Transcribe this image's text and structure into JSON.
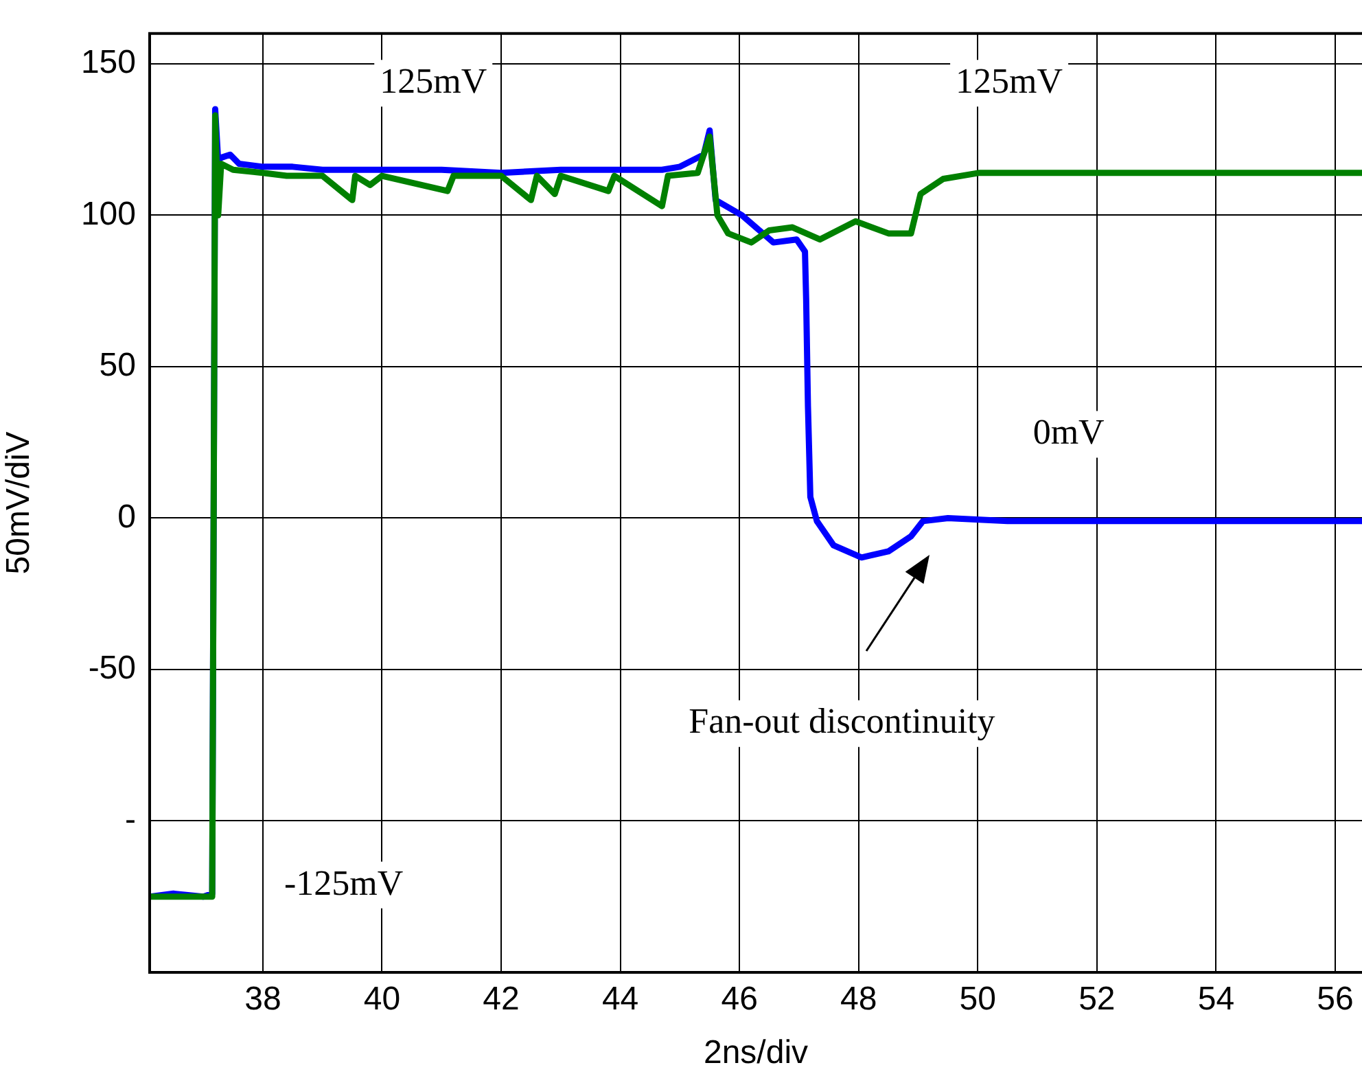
{
  "chart_data": {
    "type": "line",
    "xlabel": "2ns/div",
    "ylabel": "50mV/diV",
    "xlim": [
      36.1,
      56.45
    ],
    "xticks": [
      38,
      40,
      42,
      44,
      46,
      48,
      50,
      52,
      54,
      56
    ],
    "ylim": [
      -150,
      160
    ],
    "yticks": [
      150,
      100,
      50,
      0,
      -50,
      {
        "value": -100,
        "label": "-"
      }
    ],
    "grid": true,
    "legend": false,
    "marker": "none",
    "line_style": "solid",
    "annotations": [
      "125mV",
      "125mV",
      "0mV",
      "-125mV",
      "Fan-out discontinuity"
    ],
    "series": [
      {
        "color": "#0000ff",
        "x": [
          36.1,
          36.5,
          37.0,
          37.15,
          37.2,
          37.25,
          37.3,
          37.45,
          37.6,
          38.0,
          38.5,
          39.0,
          39.5,
          40.0,
          41.0,
          42.0,
          43.0,
          44.0,
          44.7,
          45.0,
          45.4,
          45.5,
          45.6,
          46.04,
          46.57,
          46.96,
          47.1,
          47.12,
          47.15,
          47.19,
          47.3,
          47.58,
          48.05,
          48.5,
          48.88,
          49.08,
          49.5,
          50.5,
          52.0,
          54.0,
          56.45
        ],
        "values": [
          -125,
          -124,
          -125,
          -124,
          135,
          118,
          119,
          120,
          117,
          116,
          116,
          115,
          115,
          115,
          115,
          114,
          115,
          115,
          115,
          116,
          120,
          128,
          105,
          100,
          91,
          92,
          88,
          72,
          37,
          7,
          -1,
          -9,
          -13,
          -11,
          -6,
          -1,
          0,
          -1,
          -1,
          -1,
          -1
        ]
      },
      {
        "color": "#008000",
        "x": [
          36.1,
          36.5,
          37.0,
          37.15,
          37.2,
          37.25,
          37.3,
          37.5,
          38.0,
          38.4,
          38.5,
          39.0,
          39.5,
          39.55,
          39.8,
          40.0,
          41.1,
          41.2,
          42.0,
          42.5,
          42.6,
          42.9,
          43.0,
          43.8,
          43.9,
          44.7,
          44.8,
          45.3,
          45.5,
          45.63,
          45.81,
          46.2,
          46.5,
          46.89,
          47.35,
          47.95,
          48.5,
          48.88,
          49.04,
          49.42,
          50.03,
          52.0,
          54.0,
          56.45
        ],
        "values": [
          -125,
          -125,
          -125,
          -125,
          133,
          100,
          117,
          115,
          114,
          113,
          113,
          113,
          105,
          113,
          110,
          113,
          108,
          113,
          113,
          105,
          113,
          107,
          113,
          108,
          113,
          103,
          113,
          114,
          126,
          100,
          94,
          91,
          95,
          96,
          92,
          98,
          94,
          94,
          107,
          112,
          114,
          114,
          114,
          114
        ]
      }
    ]
  }
}
